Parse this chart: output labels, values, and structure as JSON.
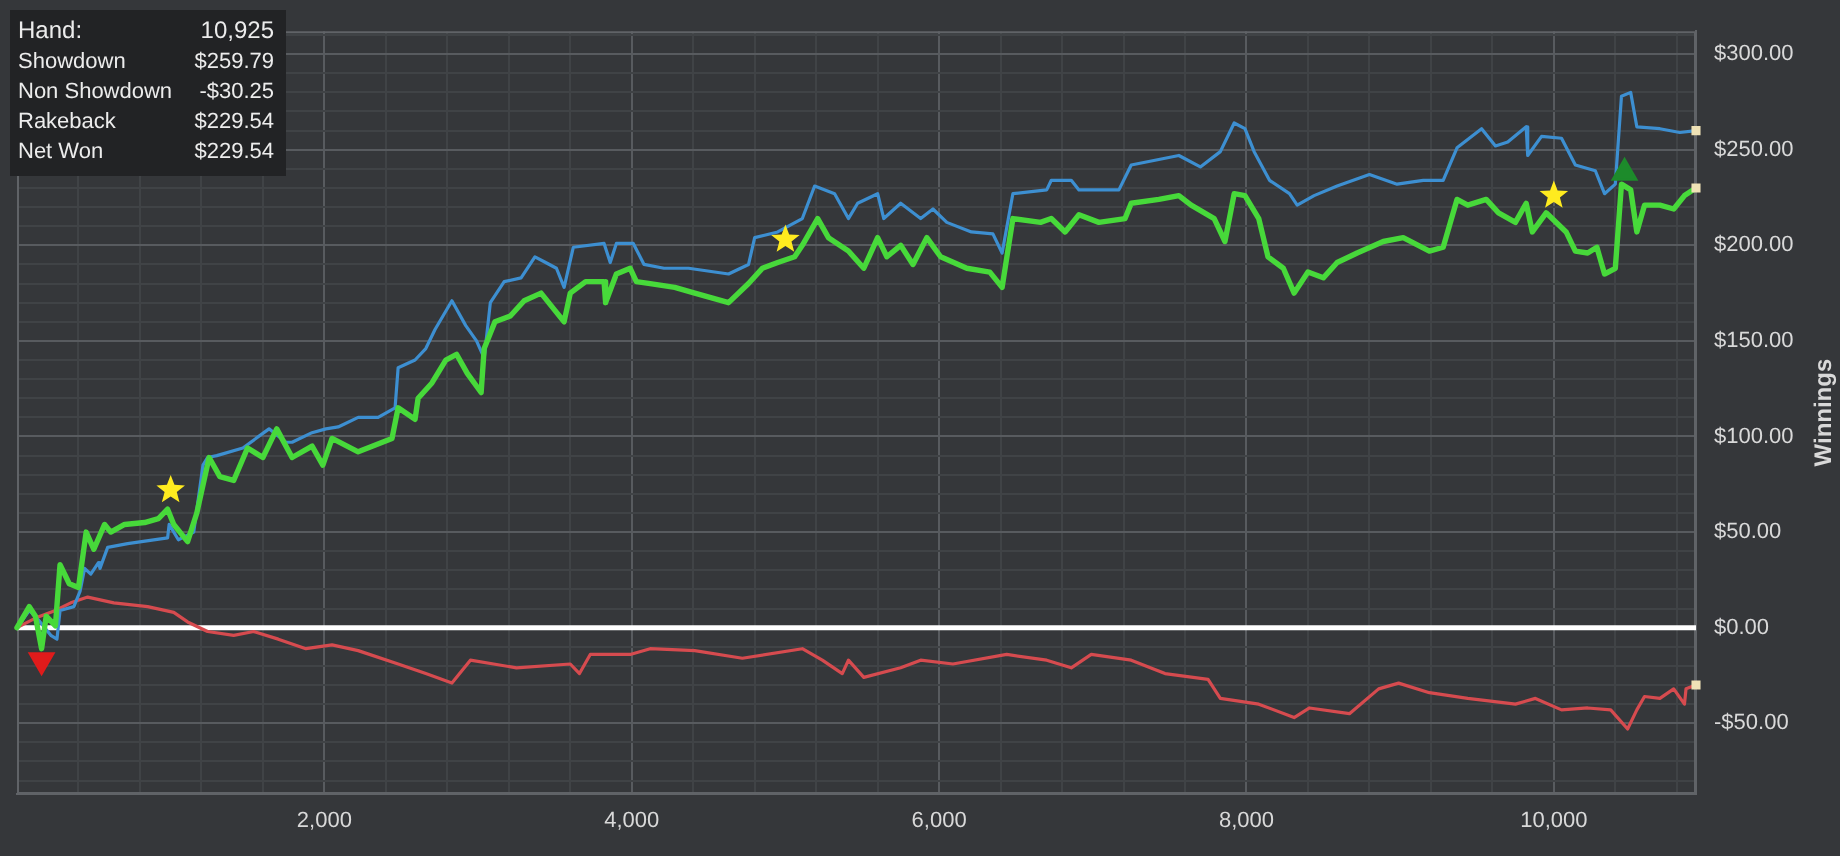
{
  "chart_data": {
    "type": "line",
    "ylabel": "Winnings",
    "annotations": [
      "Hand:",
      "10,925",
      "Showdown",
      "$259.79",
      "Non Showdown",
      "-$30.25",
      "Rakeback",
      "$229.54",
      "Net Won",
      "$229.54"
    ],
    "xlim": [
      0,
      10925
    ],
    "xticks": [
      {
        "value": 400,
        "label": null
      },
      {
        "value": 800,
        "label": null
      },
      {
        "value": 1200,
        "label": null
      },
      {
        "value": 1600,
        "label": null
      },
      {
        "value": 2000,
        "label": "2,000"
      },
      {
        "value": 2400,
        "label": null
      },
      {
        "value": 2800,
        "label": null
      },
      {
        "value": 3200,
        "label": null
      },
      {
        "value": 3600,
        "label": null
      },
      {
        "value": 4000,
        "label": "4,000"
      },
      {
        "value": 4400,
        "label": null
      },
      {
        "value": 4800,
        "label": null
      },
      {
        "value": 5200,
        "label": null
      },
      {
        "value": 5600,
        "label": null
      },
      {
        "value": 6000,
        "label": "6,000"
      },
      {
        "value": 6400,
        "label": null
      },
      {
        "value": 6800,
        "label": null
      },
      {
        "value": 7200,
        "label": null
      },
      {
        "value": 7600,
        "label": null
      },
      {
        "value": 8000,
        "label": "8,000"
      },
      {
        "value": 8400,
        "label": null
      },
      {
        "value": 8800,
        "label": null
      },
      {
        "value": 9200,
        "label": null
      },
      {
        "value": 9600,
        "label": null
      },
      {
        "value": 10000,
        "label": "10,000"
      },
      {
        "value": 10400,
        "label": null
      },
      {
        "value": 10800,
        "label": null
      }
    ],
    "ylim": [
      -87,
      312
    ],
    "yticks": [
      {
        "value": -80,
        "label": null
      },
      {
        "value": -70,
        "label": null
      },
      {
        "value": -60,
        "label": null
      },
      {
        "value": -50,
        "label": "-$50.00"
      },
      {
        "value": -40,
        "label": null
      },
      {
        "value": -30,
        "label": null
      },
      {
        "value": -20,
        "label": null
      },
      {
        "value": -10,
        "label": null
      },
      {
        "value": 0,
        "label": "$0.00"
      },
      {
        "value": 10,
        "label": null
      },
      {
        "value": 20,
        "label": null
      },
      {
        "value": 30,
        "label": null
      },
      {
        "value": 40,
        "label": null
      },
      {
        "value": 50,
        "label": "$50.00"
      },
      {
        "value": 60,
        "label": null
      },
      {
        "value": 70,
        "label": null
      },
      {
        "value": 80,
        "label": null
      },
      {
        "value": 90,
        "label": null
      },
      {
        "value": 100,
        "label": "$100.00"
      },
      {
        "value": 110,
        "label": null
      },
      {
        "value": 120,
        "label": null
      },
      {
        "value": 130,
        "label": null
      },
      {
        "value": 140,
        "label": null
      },
      {
        "value": 150,
        "label": "$150.00"
      },
      {
        "value": 160,
        "label": null
      },
      {
        "value": 170,
        "label": null
      },
      {
        "value": 180,
        "label": null
      },
      {
        "value": 190,
        "label": null
      },
      {
        "value": 200,
        "label": "$200.00"
      },
      {
        "value": 210,
        "label": null
      },
      {
        "value": 220,
        "label": null
      },
      {
        "value": 230,
        "label": null
      },
      {
        "value": 240,
        "label": null
      },
      {
        "value": 250,
        "label": "$250.00"
      },
      {
        "value": 260,
        "label": null
      },
      {
        "value": 270,
        "label": null
      },
      {
        "value": 280,
        "label": null
      },
      {
        "value": 290,
        "label": null
      },
      {
        "value": 300,
        "label": "$300.00"
      },
      {
        "value": 310,
        "label": null
      }
    ],
    "grid": true,
    "ref_lines": [
      {
        "axis": "y",
        "value": 0,
        "color": "#ffffff"
      }
    ],
    "series": [
      {
        "type": "line",
        "color": "#d64b4f",
        "marker": "none",
        "x": [
          0,
          120,
          250,
          350,
          460,
          630,
          850,
          1020,
          1110,
          1240,
          1410,
          1540,
          1700,
          1880,
          2050,
          2220,
          2480,
          2660,
          2830,
          2950,
          3250,
          3600,
          3660,
          3730,
          3990,
          4120,
          4410,
          4720,
          5110,
          5240,
          5370,
          5410,
          5510,
          5750,
          5880,
          6090,
          6440,
          6700,
          6860,
          6990,
          7250,
          7470,
          7750,
          7830,
          8080,
          8310,
          8410,
          8670,
          8860,
          8990,
          9190,
          9440,
          9750,
          9880,
          10050,
          10220,
          10370,
          10480,
          10540,
          10590,
          10690,
          10780,
          10850,
          10860,
          10925
        ],
        "values": [
          0,
          5,
          9,
          13,
          16,
          13,
          11,
          8,
          3,
          -2,
          -4,
          -2,
          -6,
          -11,
          -9,
          -12,
          -19,
          -24,
          -29,
          -17,
          -21,
          -19,
          -24,
          -14,
          -14,
          -11,
          -12,
          -16,
          -11,
          -17,
          -24,
          -17,
          -26,
          -21,
          -17,
          -19,
          -14,
          -17,
          -21,
          -14,
          -17,
          -24,
          -27,
          -37,
          -40,
          -47,
          -42,
          -45,
          -32,
          -29,
          -34,
          -37,
          -40,
          -37,
          -43,
          -42,
          -43,
          -53,
          -43,
          -36,
          -37,
          -32,
          -40,
          -32,
          -30
        ]
      },
      {
        "type": "line",
        "color": "#3d8fd1",
        "marker": "none",
        "x": [
          0,
          80,
          140,
          220,
          260,
          280,
          370,
          410,
          440,
          480,
          530,
          540,
          590,
          720,
          980,
          990,
          1050,
          1150,
          1210,
          1240,
          1300,
          1470,
          1640,
          1750,
          1790,
          1920,
          2010,
          2090,
          2220,
          2350,
          2460,
          2480,
          2590,
          2660,
          2720,
          2830,
          2920,
          2990,
          3040,
          3080,
          3170,
          3280,
          3370,
          3440,
          3510,
          3560,
          3620,
          3820,
          3860,
          3900,
          4010,
          4080,
          4210,
          4370,
          4630,
          4760,
          4800,
          4950,
          5110,
          5190,
          5320,
          5410,
          5470,
          5600,
          5640,
          5750,
          5880,
          5960,
          6050,
          6210,
          6350,
          6410,
          6480,
          6700,
          6730,
          6860,
          6910,
          7170,
          7250,
          7560,
          7700,
          7830,
          7920,
          7990,
          8050,
          8150,
          8280,
          8330,
          8440,
          8590,
          8800,
          8980,
          9150,
          9280,
          9370,
          9530,
          9620,
          9700,
          9820,
          9830,
          9920,
          10050,
          10140,
          10270,
          10330,
          10400,
          10440,
          10500,
          10540,
          10690,
          10820,
          10925
        ],
        "values": [
          0,
          9,
          4,
          -4,
          -6,
          9,
          11,
          19,
          31,
          28,
          34,
          31,
          42,
          44,
          47,
          54,
          46,
          50,
          85,
          89,
          90,
          94,
          104,
          97,
          97,
          102,
          104,
          105,
          110,
          110,
          115,
          136,
          140,
          146,
          156,
          171,
          158,
          150,
          141,
          170,
          181,
          183,
          194,
          191,
          188,
          178,
          199,
          201,
          191,
          201,
          201,
          190,
          188,
          188,
          185,
          190,
          204,
          207,
          214,
          231,
          227,
          214,
          222,
          227,
          214,
          222,
          214,
          219,
          212,
          207,
          206,
          196,
          227,
          229,
          234,
          234,
          229,
          229,
          242,
          247,
          241,
          249,
          264,
          261,
          249,
          234,
          227,
          221,
          226,
          231,
          237,
          232,
          234,
          234,
          251,
          261,
          252,
          254,
          262,
          247,
          257,
          256,
          242,
          239,
          227,
          232,
          278,
          280,
          262,
          261,
          259,
          260
        ]
      },
      {
        "type": "line",
        "color": "#47d93a",
        "marker": "none",
        "x": [
          0,
          80,
          120,
          160,
          190,
          250,
          280,
          340,
          400,
          450,
          500,
          570,
          610,
          700,
          830,
          920,
          980,
          1020,
          1110,
          1170,
          1250,
          1320,
          1410,
          1500,
          1600,
          1690,
          1790,
          1920,
          1990,
          2050,
          2220,
          2440,
          2480,
          2590,
          2610,
          2700,
          2790,
          2860,
          2930,
          3020,
          3040,
          3110,
          3210,
          3300,
          3410,
          3500,
          3560,
          3600,
          3700,
          3820,
          3830,
          3900,
          3990,
          4030,
          4120,
          4280,
          4410,
          4630,
          4760,
          4850,
          4950,
          5060,
          5110,
          5210,
          5280,
          5410,
          5510,
          5600,
          5660,
          5750,
          5830,
          5920,
          6010,
          6180,
          6330,
          6410,
          6480,
          6660,
          6730,
          6820,
          6910,
          7040,
          7210,
          7250,
          7430,
          7560,
          7640,
          7790,
          7860,
          7920,
          7990,
          8080,
          8140,
          8240,
          8310,
          8400,
          8500,
          8590,
          8720,
          8890,
          9020,
          9190,
          9280,
          9370,
          9440,
          9560,
          9640,
          9750,
          9820,
          9860,
          9950,
          10080,
          10140,
          10220,
          10280,
          10330,
          10400,
          10440,
          10500,
          10540,
          10590,
          10690,
          10780,
          10850,
          10925
        ],
        "values": [
          0,
          11,
          6,
          -11,
          6,
          1,
          33,
          23,
          21,
          50,
          41,
          54,
          50,
          54,
          55,
          57,
          62,
          54,
          45,
          60,
          89,
          79,
          77,
          94,
          89,
          104,
          89,
          95,
          85,
          99,
          92,
          99,
          115,
          109,
          120,
          128,
          140,
          143,
          133,
          123,
          146,
          160,
          163,
          171,
          175,
          166,
          160,
          175,
          181,
          181,
          170,
          185,
          188,
          181,
          180,
          178,
          175,
          170,
          180,
          188,
          191,
          194,
          200,
          214,
          204,
          197,
          188,
          204,
          194,
          200,
          190,
          204,
          194,
          188,
          186,
          178,
          214,
          212,
          214,
          207,
          216,
          212,
          214,
          222,
          224,
          226,
          221,
          214,
          202,
          227,
          226,
          214,
          194,
          188,
          175,
          186,
          183,
          191,
          196,
          202,
          204,
          197,
          199,
          224,
          221,
          224,
          217,
          212,
          222,
          207,
          217,
          207,
          197,
          196,
          199,
          185,
          188,
          232,
          229,
          207,
          221,
          221,
          219,
          226,
          230
        ]
      },
      {
        "type": "scatter",
        "color": "#ffeb1f",
        "marker": "star",
        "x": [
          1000,
          5000,
          10000
        ],
        "values": [
          72,
          203,
          226
        ]
      },
      {
        "type": "scatter",
        "colors": [
          "#e01b1b",
          "#1d8b2b"
        ],
        "marker": "triangle",
        "x": [
          160,
          10460
        ],
        "values": [
          -17,
          238
        ]
      },
      {
        "type": "scatter",
        "color": "#efe2b6",
        "marker": "square",
        "x": [
          10925,
          10925,
          10925
        ],
        "values": [
          260,
          230,
          -30
        ]
      }
    ]
  }
}
